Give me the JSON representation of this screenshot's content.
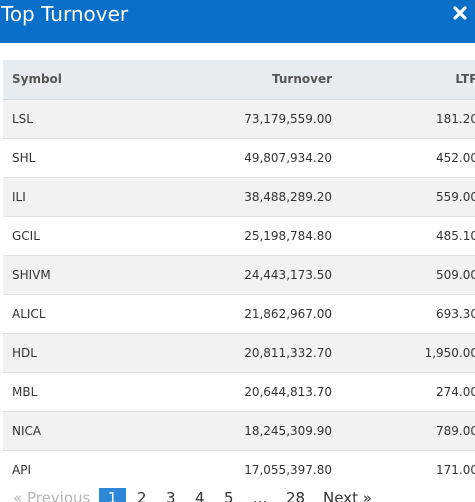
{
  "header": {
    "title": "Top Turnover",
    "close_icon": "close-icon",
    "bg_color": "#0a6fc9"
  },
  "table": {
    "columns": [
      "Symbol",
      "Turnover",
      "LTP"
    ],
    "rows": [
      [
        "LSL",
        "73,179,559.00",
        "181.20"
      ],
      [
        "SHL",
        "49,807,934.20",
        "452.00"
      ],
      [
        "ILI",
        "38,488,289.20",
        "559.00"
      ],
      [
        "GCIL",
        "25,198,784.80",
        "485.10"
      ],
      [
        "SHIVM",
        "24,443,173.50",
        "509.00"
      ],
      [
        "ALICL",
        "21,862,967.00",
        "693.30"
      ],
      [
        "HDL",
        "20,811,332.70",
        "1,950.00"
      ],
      [
        "MBL",
        "20,644,813.70",
        "274.00"
      ],
      [
        "NICA",
        "18,245,309.90",
        "789.00"
      ],
      [
        "API",
        "17,055,397.80",
        "171.00"
      ]
    ]
  },
  "pagination": {
    "prev": "« Previous",
    "pages": [
      "1",
      "2",
      "3",
      "4",
      "5"
    ],
    "ellipsis": "...",
    "last": "28",
    "next": "Next »",
    "active_page": "1",
    "active_color": "#2e87d7"
  }
}
